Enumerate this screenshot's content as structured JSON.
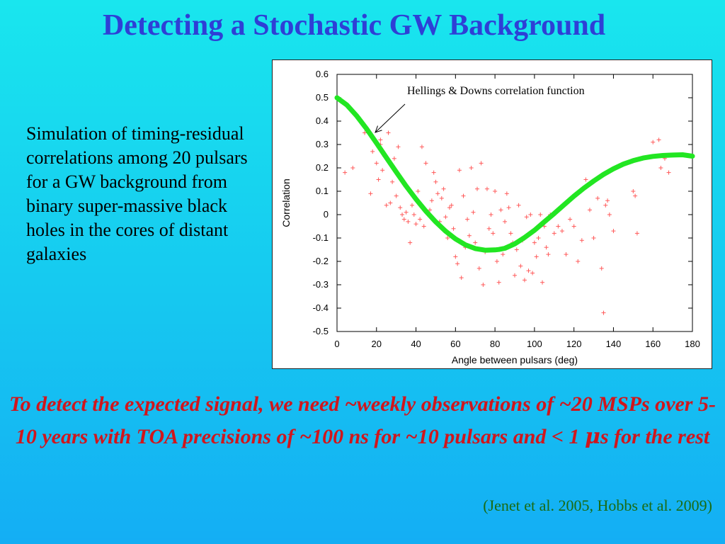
{
  "slide": {
    "title": "Detecting a Stochastic GW Background",
    "body_text": "Simulation of timing-residual correlations among 20 pulsars for a GW background from binary super-massive black holes in the cores of distant galaxies",
    "callout_prefix": "To detect the expected signal, we need ~weekly observations of ~20 MSPs over 5-10 years with TOA precisions of  ~100 ns for ~10 pulsars and < 1 ",
    "callout_mu": "μ",
    "callout_suffix": "s for the rest",
    "citation": "(Jenet et al. 2005, Hobbs et al. 2009)"
  },
  "colors": {
    "title": "#2e3fd6",
    "callout": "#d0161c",
    "citation": "#1a6b12",
    "curve": "#22e622",
    "points": "#ff5a5a"
  },
  "chart_data": {
    "type": "scatter",
    "xlabel": "Angle between pulsars (deg)",
    "ylabel": "Correlation",
    "xlim": [
      0,
      180
    ],
    "ylim": [
      -0.5,
      0.6
    ],
    "xticks": [
      0,
      20,
      40,
      60,
      80,
      100,
      120,
      140,
      160,
      180
    ],
    "yticks": [
      -0.5,
      -0.4,
      -0.3,
      -0.2,
      -0.1,
      0,
      0.1,
      0.2,
      0.3,
      0.4,
      0.5,
      0.6
    ],
    "ytick_labels": [
      "-0.5",
      "-0.4",
      "-0.3",
      "-0.2",
      "-0.1",
      "0",
      "0.1",
      "0.2",
      "0.3",
      "0.4",
      "0.5",
      "0.6"
    ],
    "grid": false,
    "annotation": "Hellings & Downs correlation function",
    "curve": {
      "x": [
        0,
        5,
        10,
        15,
        20,
        25,
        30,
        35,
        40,
        45,
        50,
        55,
        60,
        65,
        70,
        75,
        80,
        82,
        85,
        90,
        95,
        100,
        105,
        110,
        115,
        120,
        125,
        130,
        135,
        140,
        145,
        150,
        155,
        160,
        165,
        170,
        175,
        180
      ],
      "y": [
        0.5,
        0.469,
        0.422,
        0.367,
        0.306,
        0.244,
        0.182,
        0.122,
        0.066,
        0.015,
        -0.031,
        -0.071,
        -0.104,
        -0.129,
        -0.145,
        -0.152,
        -0.151,
        -0.149,
        -0.144,
        -0.125,
        -0.098,
        -0.067,
        -0.031,
        0.005,
        0.042,
        0.079,
        0.113,
        0.144,
        0.172,
        0.196,
        0.216,
        0.231,
        0.242,
        0.249,
        0.253,
        0.255,
        0.256,
        0.25
      ]
    },
    "points": {
      "x": [
        4,
        8,
        12,
        14,
        17,
        18,
        20,
        21,
        22,
        22,
        23,
        24,
        25,
        26,
        27,
        28,
        29,
        30,
        31,
        32,
        33,
        34,
        35,
        36,
        37,
        38,
        39,
        40,
        41,
        42,
        43,
        44,
        45,
        46,
        47,
        48,
        49,
        50,
        51,
        52,
        53,
        54,
        55,
        56,
        57,
        58,
        59,
        60,
        61,
        62,
        63,
        64,
        65,
        66,
        67,
        68,
        69,
        70,
        71,
        72,
        73,
        74,
        75,
        76,
        77,
        78,
        79,
        80,
        81,
        82,
        83,
        84,
        85,
        86,
        87,
        88,
        89,
        90,
        91,
        92,
        93,
        94,
        95,
        96,
        97,
        98,
        99,
        100,
        101,
        102,
        103,
        104,
        105,
        106,
        107,
        108,
        110,
        112,
        114,
        116,
        118,
        120,
        122,
        124,
        126,
        128,
        130,
        132,
        134,
        135,
        136,
        137,
        138,
        140,
        150,
        151,
        152,
        160,
        162,
        163,
        164,
        166,
        168
      ],
      "y": [
        0.18,
        0.2,
        0.4,
        0.35,
        0.09,
        0.27,
        0.22,
        0.15,
        0.32,
        0.3,
        0.19,
        0.25,
        0.04,
        0.35,
        0.05,
        0.14,
        0.24,
        0.08,
        0.29,
        0.03,
        0.0,
        -0.02,
        0.01,
        -0.03,
        -0.12,
        0.04,
        0.0,
        -0.04,
        0.1,
        -0.02,
        0.29,
        -0.05,
        0.22,
        0.0,
        0.02,
        0.06,
        0.18,
        0.14,
        0.09,
        -0.03,
        0.07,
        0.11,
        -0.01,
        -0.1,
        0.03,
        0.04,
        -0.06,
        -0.18,
        -0.21,
        0.19,
        -0.27,
        0.08,
        -0.14,
        -0.02,
        -0.09,
        0.2,
        0.01,
        -0.12,
        0.11,
        -0.23,
        0.22,
        -0.3,
        -0.16,
        0.11,
        -0.06,
        0.0,
        -0.08,
        0.1,
        -0.2,
        -0.29,
        0.02,
        -0.17,
        -0.03,
        0.09,
        0.03,
        -0.08,
        -0.12,
        -0.26,
        -0.15,
        0.04,
        -0.22,
        -0.11,
        -0.28,
        -0.01,
        -0.24,
        0.0,
        -0.25,
        -0.12,
        -0.18,
        -0.1,
        0.0,
        -0.29,
        -0.05,
        -0.14,
        -0.17,
        0.0,
        -0.08,
        -0.05,
        -0.07,
        -0.17,
        -0.02,
        -0.05,
        -0.2,
        -0.11,
        0.15,
        0.02,
        -0.1,
        0.07,
        -0.23,
        -0.42,
        0.04,
        0.06,
        0.0,
        -0.07,
        0.1,
        0.08,
        -0.08,
        0.31,
        0.25,
        0.32,
        0.2,
        0.24,
        0.18
      ]
    }
  }
}
